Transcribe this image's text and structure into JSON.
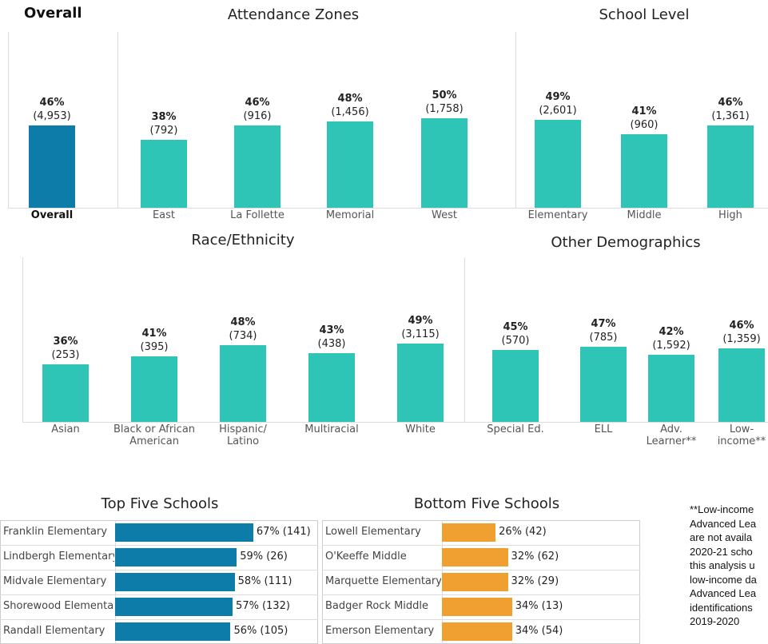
{
  "chart_data": [
    {
      "type": "bar",
      "title": "Overall",
      "categories": [
        "Overall"
      ],
      "values": [
        46
      ],
      "value_labels": [
        "46%"
      ],
      "counts": [
        4953
      ],
      "count_labels": [
        "(4,953)"
      ],
      "color": "#0e7ca8"
    },
    {
      "type": "bar",
      "title": "Attendance Zones",
      "categories": [
        "East",
        "La Follette",
        "Memorial",
        "West"
      ],
      "values": [
        38,
        46,
        48,
        50
      ],
      "value_labels": [
        "38%",
        "46%",
        "48%",
        "50%"
      ],
      "counts": [
        792,
        916,
        1456,
        1758
      ],
      "count_labels": [
        "(792)",
        "(916)",
        "(1,456)",
        "(1,758)"
      ],
      "color": "#2ec4b6"
    },
    {
      "type": "bar",
      "title": "School Level",
      "categories": [
        "Elementary",
        "Middle",
        "High"
      ],
      "values": [
        49,
        41,
        46
      ],
      "value_labels": [
        "49%",
        "41%",
        "46%"
      ],
      "counts": [
        2601,
        960,
        1361
      ],
      "count_labels": [
        "(2,601)",
        "(960)",
        "(1,361)"
      ],
      "color": "#2ec4b6"
    },
    {
      "type": "bar",
      "title": "Race/Ethnicity",
      "categories": [
        "Asian",
        "Black or African\nAmerican",
        "Hispanic/\nLatino",
        "Multiracial",
        "White"
      ],
      "values": [
        36,
        41,
        48,
        43,
        49
      ],
      "value_labels": [
        "36%",
        "41%",
        "48%",
        "43%",
        "49%"
      ],
      "counts": [
        253,
        395,
        734,
        438,
        3115
      ],
      "count_labels": [
        "(253)",
        "(395)",
        "(734)",
        "(438)",
        "(3,115)"
      ],
      "color": "#2ec4b6"
    },
    {
      "type": "bar",
      "title": "Other Demographics",
      "categories": [
        "Special Ed.",
        "ELL",
        "Adv.\nLearner**",
        "Low-\nincome**"
      ],
      "values": [
        45,
        47,
        42,
        46
      ],
      "value_labels": [
        "45%",
        "47%",
        "42%",
        "46%"
      ],
      "counts": [
        570,
        785,
        1592,
        1359
      ],
      "count_labels": [
        "(570)",
        "(785)",
        "(1,592)",
        "(1,359)"
      ],
      "color": "#2ec4b6"
    },
    {
      "type": "hbar",
      "title": "Top Five Schools",
      "categories": [
        "Franklin Elementary",
        "Lindbergh Elementary",
        "Midvale Elementary",
        "Shorewood Elementary",
        "Randall Elementary"
      ],
      "values": [
        67,
        59,
        58,
        57,
        56
      ],
      "value_labels": [
        "67%",
        "59%",
        "58%",
        "57%",
        "56%"
      ],
      "counts": [
        141,
        26,
        111,
        132,
        105
      ],
      "count_labels": [
        "(141)",
        "(26)",
        "(111)",
        "(132)",
        "(105)"
      ],
      "color": "#0e7ca8"
    },
    {
      "type": "hbar",
      "title": "Bottom Five Schools",
      "categories": [
        "Lowell Elementary",
        "O'Keeffe Middle",
        "Marquette Elementary",
        "Badger Rock Middle",
        "Emerson Elementary"
      ],
      "values": [
        26,
        32,
        32,
        34,
        34
      ],
      "value_labels": [
        "26%",
        "32%",
        "32%",
        "34%",
        "34%"
      ],
      "counts": [
        42,
        62,
        29,
        13,
        54
      ],
      "count_labels": [
        "(42)",
        "(62)",
        "(29)",
        "(13)",
        "(54)"
      ],
      "color": "#f0a030"
    }
  ],
  "footnote": [
    "**Low-income",
    "Advanced Lea",
    "are not availa",
    "2020-21 scho",
    "this analysis u",
    "low-income da",
    "Advanced Lea",
    "identifications",
    "2019-2020"
  ]
}
